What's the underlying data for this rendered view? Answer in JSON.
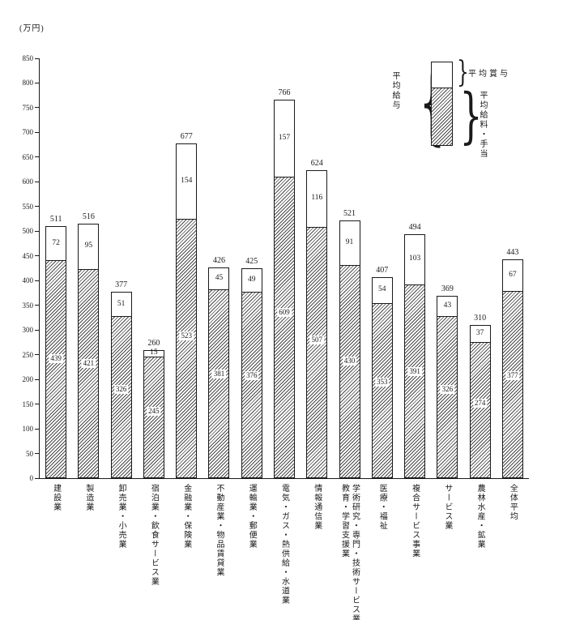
{
  "unit_label": "(万円)",
  "legend": {
    "total_label": "平均給与",
    "bonus_label": "平均賞与",
    "salary_label": "平均給料・手当"
  },
  "chart_data": {
    "type": "bar",
    "stacked": true,
    "title": "",
    "xlabel": "",
    "ylabel": "(万円)",
    "ylim": [
      0,
      850
    ],
    "ytick_step": 50,
    "grid": false,
    "legend_position": "top-right",
    "categories": [
      "建設業",
      "製造業",
      "卸売業・小売業",
      "宿泊業・飲食サービス業",
      "金融業・保険業",
      "不動産業・物品賃貸業",
      "運輸業・郵便業",
      "電気・ガス・熱供給・水道業",
      "情報通信業",
      "学術研究・専門・技術サービス業\n教育・学習支援業",
      "医療・福祉",
      "複合サービス事業",
      "サービス業",
      "農林水産・鉱業",
      "全体平均"
    ],
    "series": [
      {
        "name": "平均給料・手当",
        "values": [
          439,
          421,
          326,
          245,
          523,
          381,
          376,
          609,
          507,
          430,
          353,
          391,
          326,
          274,
          377
        ]
      },
      {
        "name": "平均賞与",
        "values": [
          72,
          95,
          51,
          15,
          154,
          45,
          49,
          157,
          116,
          91,
          54,
          103,
          43,
          37,
          67
        ]
      }
    ],
    "totals": [
      511,
      516,
      377,
      260,
      677,
      426,
      425,
      766,
      624,
      521,
      407,
      494,
      369,
      310,
      443
    ]
  }
}
